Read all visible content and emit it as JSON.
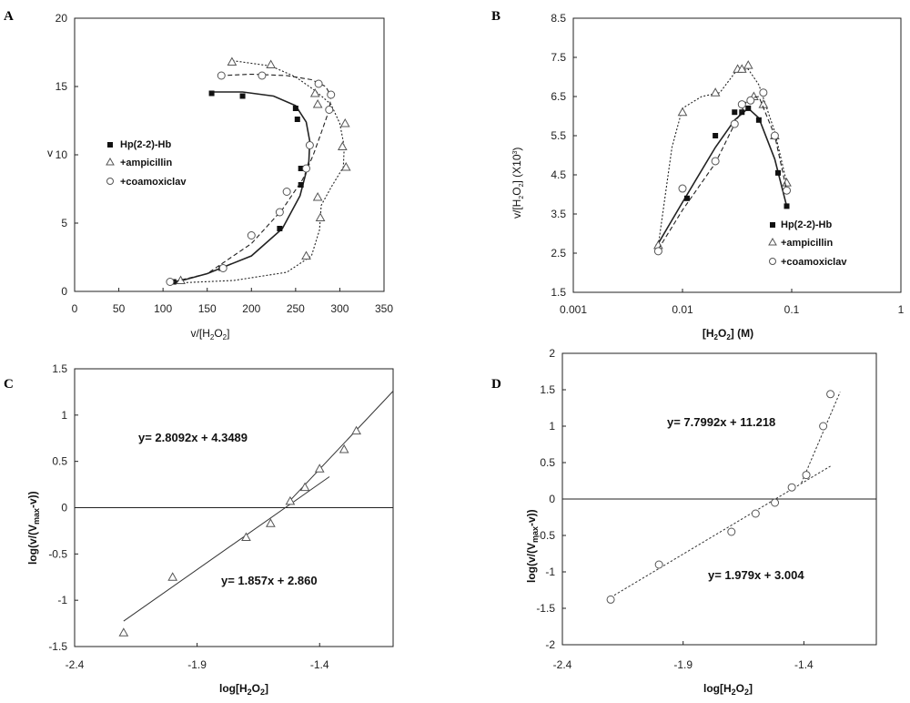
{
  "chart_data": [
    {
      "panel": "A",
      "type": "scatter",
      "xlabel": "v/[H2O2]",
      "ylabel": "v",
      "xlim": [
        0,
        350
      ],
      "ylim": [
        0,
        20
      ],
      "x_ticks": [
        "0",
        "50",
        "100",
        "150",
        "200",
        "250",
        "300",
        "350"
      ],
      "y_ticks": [
        "0",
        "5",
        "10",
        "15",
        "20"
      ],
      "legend_position": "center-left",
      "series": [
        {
          "name": "Hp(2-2)-Hb",
          "marker": "square-filled",
          "line": "solid",
          "points": [
            [
              112,
              0.7
            ],
            [
              166,
              1.7
            ],
            [
              232,
              4.6
            ],
            [
              256,
              7.8
            ],
            [
              256,
              9.0
            ],
            [
              266,
              10.7
            ],
            [
              252,
              12.6
            ],
            [
              250,
              13.4
            ],
            [
              190,
              14.3
            ],
            [
              155,
              14.5
            ]
          ],
          "curve": [
            [
              110,
              0.6
            ],
            [
              150,
              1.3
            ],
            [
              200,
              2.6
            ],
            [
              235,
              4.6
            ],
            [
              255,
              7.0
            ],
            [
              265,
              9.5
            ],
            [
              266,
              11.0
            ],
            [
              262,
              12.4
            ],
            [
              250,
              13.6
            ],
            [
              225,
              14.3
            ],
            [
              190,
              14.6
            ],
            [
              155,
              14.6
            ]
          ]
        },
        {
          "name": "+ampicillin",
          "marker": "triangle-open",
          "line": "dotted",
          "points": [
            [
              120,
              0.8
            ],
            [
              262,
              2.6
            ],
            [
              278,
              5.4
            ],
            [
              275,
              6.9
            ],
            [
              307,
              9.1
            ],
            [
              303,
              10.6
            ],
            [
              306,
              12.3
            ],
            [
              275,
              13.7
            ],
            [
              272,
              14.5
            ],
            [
              222,
              16.6
            ],
            [
              178,
              16.8
            ]
          ],
          "curve": [
            [
              110,
              0.6
            ],
            [
              180,
              0.8
            ],
            [
              240,
              1.4
            ],
            [
              268,
              2.6
            ],
            [
              277,
              4.5
            ],
            [
              279,
              6.3
            ],
            [
              290,
              7.6
            ],
            [
              304,
              9.1
            ],
            [
              305,
              10.6
            ],
            [
              300,
              12.3
            ],
            [
              290,
              13.7
            ],
            [
              272,
              14.7
            ],
            [
              250,
              15.7
            ],
            [
              222,
              16.5
            ],
            [
              178,
              16.9
            ]
          ]
        },
        {
          "name": "+coamoxiclav",
          "marker": "circle-open",
          "line": "dashed",
          "points": [
            [
              108,
              0.7
            ],
            [
              168,
              1.7
            ],
            [
              200,
              4.1
            ],
            [
              232,
              5.8
            ],
            [
              240,
              7.3
            ],
            [
              262,
              9.0
            ],
            [
              266,
              10.7
            ],
            [
              288,
              13.3
            ],
            [
              290,
              14.4
            ],
            [
              276,
              15.2
            ],
            [
              212,
              15.8
            ],
            [
              166,
              15.8
            ]
          ],
          "curve": [
            [
              105,
              0.6
            ],
            [
              150,
              1.3
            ],
            [
              200,
              3.5
            ],
            [
              235,
              6.0
            ],
            [
              258,
              8.2
            ],
            [
              270,
              10.0
            ],
            [
              280,
              11.8
            ],
            [
              288,
              13.3
            ],
            [
              290,
              14.3
            ],
            [
              284,
              15.0
            ],
            [
              268,
              15.5
            ],
            [
              240,
              15.8
            ],
            [
              200,
              15.9
            ],
            [
              166,
              15.8
            ]
          ]
        }
      ]
    },
    {
      "panel": "B",
      "type": "scatter",
      "xlabel": "[H2O2] (M)",
      "ylabel": "v/[H2O2] (X10^3)",
      "xscale": "log",
      "xlim": [
        0.001,
        1
      ],
      "ylim": [
        1.5,
        8.5
      ],
      "x_ticks": [
        "0.001",
        "0.01",
        "0.1",
        "1"
      ],
      "y_ticks": [
        "1.5",
        "2.5",
        "3.5",
        "4.5",
        "5.5",
        "6.5",
        "7.5",
        "8.5"
      ],
      "legend_position": "bottom-right",
      "series": [
        {
          "name": "Hp(2-2)-Hb",
          "marker": "square-filled",
          "line": "solid",
          "points": [
            [
              0.006,
              2.65
            ],
            [
              0.011,
              3.9
            ],
            [
              0.02,
              5.5
            ],
            [
              0.03,
              6.1
            ],
            [
              0.035,
              6.1
            ],
            [
              0.04,
              6.2
            ],
            [
              0.05,
              5.9
            ],
            [
              0.075,
              4.55
            ],
            [
              0.09,
              3.7
            ]
          ],
          "curve": [
            [
              0.006,
              2.75
            ],
            [
              0.01,
              3.8
            ],
            [
              0.02,
              5.2
            ],
            [
              0.03,
              5.9
            ],
            [
              0.04,
              6.2
            ],
            [
              0.05,
              5.95
            ],
            [
              0.07,
              4.9
            ],
            [
              0.09,
              3.7
            ]
          ]
        },
        {
          "name": "+ampicillin",
          "marker": "triangle-open",
          "line": "dotted",
          "points": [
            [
              0.006,
              2.7
            ],
            [
              0.01,
              6.1
            ],
            [
              0.02,
              6.6
            ],
            [
              0.032,
              7.2
            ],
            [
              0.035,
              7.2
            ],
            [
              0.04,
              7.3
            ],
            [
              0.045,
              6.5
            ],
            [
              0.055,
              6.3
            ],
            [
              0.07,
              5.5
            ],
            [
              0.09,
              4.3
            ]
          ],
          "curve": [
            [
              0.006,
              2.7
            ],
            [
              0.008,
              5.2
            ],
            [
              0.01,
              6.2
            ],
            [
              0.015,
              6.5
            ],
            [
              0.022,
              6.6
            ],
            [
              0.03,
              7.1
            ],
            [
              0.04,
              7.2
            ],
            [
              0.05,
              6.8
            ],
            [
              0.07,
              5.6
            ],
            [
              0.09,
              4.3
            ]
          ]
        },
        {
          "name": "+coamoxiclav",
          "marker": "circle-open",
          "line": "dashed",
          "points": [
            [
              0.006,
              2.55
            ],
            [
              0.01,
              4.15
            ],
            [
              0.02,
              4.85
            ],
            [
              0.03,
              5.8
            ],
            [
              0.035,
              6.3
            ],
            [
              0.042,
              6.4
            ],
            [
              0.055,
              6.6
            ],
            [
              0.07,
              5.5
            ],
            [
              0.09,
              4.1
            ]
          ],
          "curve": [
            [
              0.006,
              2.6
            ],
            [
              0.01,
              3.6
            ],
            [
              0.02,
              4.8
            ],
            [
              0.03,
              5.8
            ],
            [
              0.04,
              6.45
            ],
            [
              0.05,
              6.5
            ],
            [
              0.07,
              5.5
            ],
            [
              0.09,
              4.1
            ]
          ]
        }
      ]
    },
    {
      "panel": "C",
      "type": "scatter",
      "xlabel": "log[H2O2]",
      "ylabel": "log(v/(Vmax-v))",
      "xlim": [
        -2.4,
        -1.1
      ],
      "ylim": [
        -1.5,
        1.5
      ],
      "x_ticks": [
        "-2.4",
        "-1.9",
        "-1.4"
      ],
      "y_ticks": [
        "-1.5",
        "-1",
        "-0.5",
        "0",
        "0.5",
        "1",
        "1.5"
      ],
      "points": [
        [
          -2.2,
          -1.35
        ],
        [
          -2.0,
          -0.75
        ],
        [
          -1.7,
          -0.32
        ],
        [
          -1.6,
          -0.17
        ],
        [
          -1.52,
          0.07
        ],
        [
          -1.46,
          0.22
        ],
        [
          -1.4,
          0.42
        ],
        [
          -1.3,
          0.63
        ],
        [
          -1.25,
          0.83
        ]
      ],
      "fits": [
        {
          "equation": "y = 1.857x + 2.860",
          "slope": 1.857,
          "intercept": 2.86,
          "x_range": [
            -2.2,
            -1.36
          ],
          "style": "solid"
        },
        {
          "equation": "y = 2.8092x + 4.3489",
          "slope": 2.8092,
          "intercept": 4.3489,
          "x_range": [
            -1.53,
            -1.1
          ],
          "style": "solid"
        }
      ]
    },
    {
      "panel": "D",
      "type": "scatter",
      "xlabel": "log[H2O2]",
      "ylabel": "log(v/(Vmax-v))",
      "xlim": [
        -2.4,
        -1.1
      ],
      "ylim": [
        -2,
        2
      ],
      "x_ticks": [
        "-2.4",
        "-1.9",
        "-1.4"
      ],
      "y_ticks": [
        "-2",
        "-1.5",
        "-1",
        "-0.5",
        "0",
        "0.5",
        "1",
        "1.5",
        "2"
      ],
      "points": [
        [
          -2.2,
          -1.38
        ],
        [
          -2.0,
          -0.9
        ],
        [
          -1.7,
          -0.45
        ],
        [
          -1.6,
          -0.2
        ],
        [
          -1.52,
          -0.05
        ],
        [
          -1.45,
          0.16
        ],
        [
          -1.39,
          0.33
        ],
        [
          -1.32,
          1.0
        ],
        [
          -1.29,
          1.44
        ]
      ],
      "fits": [
        {
          "equation": "y = 1.979x + 3.004",
          "slope": 1.979,
          "intercept": 3.004,
          "x_range": [
            -2.2,
            -1.29
          ],
          "style": "dotted"
        },
        {
          "equation": "y = 7.7992x + 11.218",
          "slope": 7.7992,
          "intercept": 11.218,
          "x_range": [
            -1.41,
            -1.25
          ],
          "style": "dotted"
        }
      ]
    }
  ],
  "panels": {
    "A": {
      "letter": "A",
      "ylabel": "v",
      "xlabel": "v/[H",
      "xlabel_sub1": "2",
      "xlabel_mid": "O",
      "xlabel_sub2": "2",
      "xlabel_end": "]",
      "legend": [
        "Hp(2-2)-Hb",
        "+ampicillin",
        "+coamoxiclav"
      ]
    },
    "B": {
      "letter": "B",
      "ylabel": "v/[H",
      "ylabel_sub1": "2",
      "ylabel_mid": "O",
      "ylabel_sub2": "2",
      "ylabel_end": "] (X10",
      "ylabel_sup": "3",
      "ylabel_close": ")",
      "xlabel": "[H",
      "xlabel_sub1": "2",
      "xlabel_mid": "O",
      "xlabel_sub2": "2",
      "xlabel_end": "] (M)",
      "legend": [
        "Hp(2-2)-Hb",
        "+ampicillin",
        "+coamoxiclav"
      ]
    },
    "C": {
      "letter": "C",
      "ylabel": "log(v/(V",
      "ylabel_sub": "max",
      "ylabel_end": "-v))",
      "xlabel": "log[H",
      "xlabel_sub1": "2",
      "xlabel_mid": "O",
      "xlabel_sub2": "2",
      "xlabel_end": "]",
      "eq1": "y= 2.8092x + 4.3489",
      "eq2": "y= 1.857x + 2.860"
    },
    "D": {
      "letter": "D",
      "ylabel": "log(v/(V",
      "ylabel_sub": "max",
      "ylabel_end": "-v))",
      "xlabel": "log[H",
      "xlabel_sub1": "2",
      "xlabel_mid": "O",
      "xlabel_sub2": "2",
      "xlabel_end": "]",
      "eq1": "y= 7.7992x + 11.218",
      "eq2": "y= 1.979x + 3.004"
    }
  }
}
